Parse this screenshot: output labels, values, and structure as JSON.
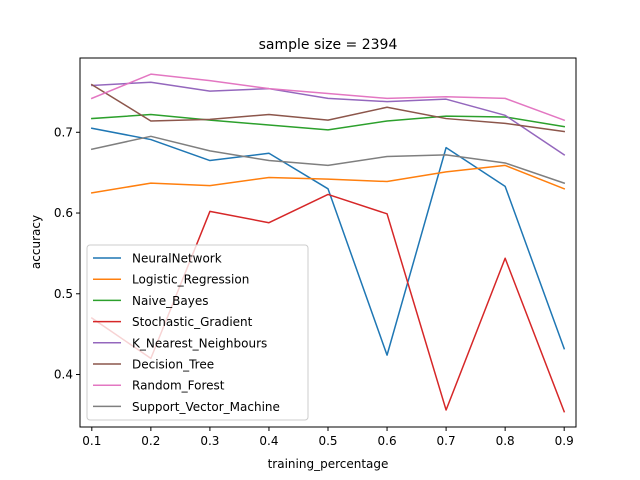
{
  "chart_data": {
    "type": "line",
    "title": "sample size = 2394",
    "xlabel": "training_percentage",
    "ylabel": "accuracy",
    "x": [
      0.1,
      0.2,
      0.3,
      0.4,
      0.5,
      0.6,
      0.7,
      0.8,
      0.9
    ],
    "xlim": [
      0.08,
      0.92
    ],
    "ylim": [
      0.335,
      0.792
    ],
    "x_ticks": [
      "0.1",
      "0.2",
      "0.3",
      "0.4",
      "0.5",
      "0.6",
      "0.7",
      "0.8",
      "0.9"
    ],
    "y_ticks": [
      "0.4",
      "0.5",
      "0.6",
      "0.7"
    ],
    "grid": false,
    "legend_position": "lower-left",
    "series": [
      {
        "name": "NeuralNetwork",
        "color": "#1f77b4",
        "values": [
          0.705,
          0.691,
          0.665,
          0.674,
          0.63,
          0.424,
          0.681,
          0.633,
          0.432
        ]
      },
      {
        "name": "Logistic_Regression",
        "color": "#ff7f0e",
        "values": [
          0.625,
          0.637,
          0.634,
          0.644,
          0.642,
          0.639,
          0.651,
          0.659,
          0.63
        ]
      },
      {
        "name": "Naive_Bayes",
        "color": "#2ca02c",
        "values": [
          0.717,
          0.722,
          0.715,
          0.709,
          0.703,
          0.714,
          0.72,
          0.719,
          0.707
        ]
      },
      {
        "name": "Stochastic_Gradient",
        "color": "#d62728",
        "values": [
          0.47,
          0.42,
          0.602,
          0.588,
          0.623,
          0.599,
          0.356,
          0.544,
          0.354
        ]
      },
      {
        "name": "K_Nearest_Neighbours",
        "color": "#9467bd",
        "values": [
          0.758,
          0.762,
          0.751,
          0.754,
          0.742,
          0.738,
          0.741,
          0.721,
          0.672
        ]
      },
      {
        "name": "Decision_Tree",
        "color": "#8c564b",
        "values": [
          0.759,
          0.714,
          0.716,
          0.722,
          0.715,
          0.731,
          0.717,
          0.711,
          0.701
        ]
      },
      {
        "name": "Random_Forest",
        "color": "#e377c2",
        "values": [
          0.742,
          0.772,
          0.764,
          0.754,
          0.748,
          0.742,
          0.744,
          0.742,
          0.715
        ]
      },
      {
        "name": "Support_Vector_Machine",
        "color": "#7f7f7f",
        "values": [
          0.679,
          0.695,
          0.677,
          0.665,
          0.659,
          0.67,
          0.672,
          0.662,
          0.637
        ]
      }
    ]
  }
}
